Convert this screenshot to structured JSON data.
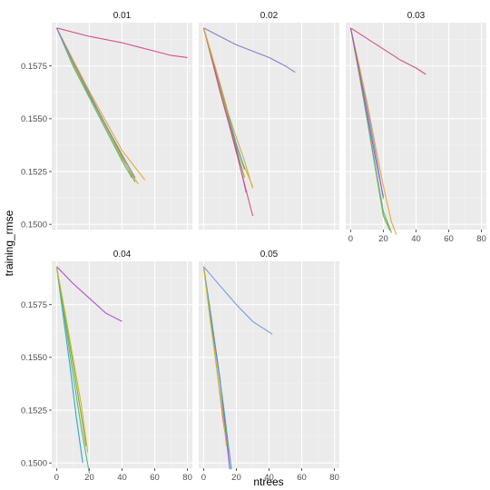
{
  "chart_data": {
    "type": "line",
    "layout": "facet-grid",
    "xlabel": "ntrees",
    "ylabel": "training_rmse",
    "xlim": [
      -3,
      83
    ],
    "ylim": [
      0.14975,
      0.15955
    ],
    "x_ticks": [
      0,
      20,
      40,
      60,
      80
    ],
    "x_tick_labels": [
      "0",
      "20",
      "40",
      "60",
      "80"
    ],
    "y_ticks": [
      0.15,
      0.1525,
      0.155,
      0.1575
    ],
    "y_tick_labels": [
      "0.1500",
      "0.1525",
      "0.1550",
      "0.1575"
    ],
    "grid": true,
    "legend": "none",
    "colors": {
      "panel_bg": "#ebebeb",
      "grid_major": "#ffffff",
      "series_palette": [
        "#d64f8a",
        "#8e7cc3",
        "#cdb820",
        "#8aa82c",
        "#4fbc8f",
        "#36a6c5",
        "#6e9ee0",
        "#e0a93a",
        "#b04fd0"
      ]
    },
    "panels": [
      {
        "label": "0.01",
        "series": [
          {
            "color": "#d64f8a",
            "x": [
              0,
              20,
              40,
              50,
              60,
              70,
              80
            ],
            "y": [
              0.1593,
              0.1589,
              0.1586,
              0.1584,
              0.1582,
              0.158,
              0.1579
            ]
          },
          {
            "color": "#8aa82c",
            "x": [
              0,
              10,
              20,
              30,
              40,
              48
            ],
            "y": [
              0.1593,
              0.1576,
              0.1561,
              0.1547,
              0.1532,
              0.152
            ]
          },
          {
            "color": "#cdb820",
            "x": [
              0,
              10,
              20,
              30,
              40,
              50
            ],
            "y": [
              0.1593,
              0.1576,
              0.156,
              0.1546,
              0.1531,
              0.1519
            ]
          },
          {
            "color": "#4fbc8f",
            "x": [
              0,
              10,
              20,
              30,
              40,
              46
            ],
            "y": [
              0.1593,
              0.1575,
              0.156,
              0.1545,
              0.153,
              0.1522
            ]
          },
          {
            "color": "#e0a93a",
            "x": [
              0,
              10,
              20,
              30,
              40,
              54
            ],
            "y": [
              0.1593,
              0.1578,
              0.1563,
              0.1549,
              0.1535,
              0.1521
            ]
          },
          {
            "color": "#8e7cc3",
            "x": [
              0,
              10,
              20,
              30,
              40,
              48
            ],
            "y": [
              0.1593,
              0.1577,
              0.1562,
              0.1547,
              0.1533,
              0.1522
            ]
          }
        ]
      },
      {
        "label": "0.02",
        "series": [
          {
            "color": "#8e7cc3",
            "x": [
              0,
              10,
              20,
              30,
              40,
              50,
              56
            ],
            "y": [
              0.1593,
              0.1589,
              0.1585,
              0.1582,
              0.1579,
              0.1575,
              0.1572
            ]
          },
          {
            "color": "#cdb820",
            "x": [
              0,
              5,
              10,
              15,
              20,
              25,
              30
            ],
            "y": [
              0.1593,
              0.158,
              0.1565,
              0.155,
              0.1537,
              0.1527,
              0.1518
            ]
          },
          {
            "color": "#8aa82c",
            "x": [
              0,
              5,
              10,
              15,
              20,
              25
            ],
            "y": [
              0.1593,
              0.1578,
              0.1563,
              0.155,
              0.1536,
              0.1522
            ]
          },
          {
            "color": "#36a6c5",
            "x": [
              0,
              5,
              10,
              15,
              20,
              25
            ],
            "y": [
              0.1593,
              0.158,
              0.1566,
              0.1552,
              0.1538,
              0.1526
            ]
          },
          {
            "color": "#b04fd0",
            "x": [
              0,
              5,
              10,
              15,
              20,
              26
            ],
            "y": [
              0.1593,
              0.1579,
              0.1563,
              0.1549,
              0.1535,
              0.1515
            ]
          },
          {
            "color": "#d64f8a",
            "x": [
              0,
              5,
              10,
              15,
              20,
              25,
              30
            ],
            "y": [
              0.1593,
              0.1579,
              0.1563,
              0.1549,
              0.1534,
              0.1519,
              0.1504
            ]
          },
          {
            "color": "#e0a93a",
            "x": [
              0,
              5,
              10,
              15,
              20,
              25,
              30
            ],
            "y": [
              0.1593,
              0.158,
              0.1567,
              0.1553,
              0.1541,
              0.153,
              0.1517
            ]
          }
        ]
      },
      {
        "label": "0.03",
        "series": [
          {
            "color": "#d64f8a",
            "x": [
              0,
              10,
              20,
              30,
              40,
              46
            ],
            "y": [
              0.1593,
              0.1588,
              0.1583,
              0.1578,
              0.1574,
              0.1571
            ]
          },
          {
            "color": "#6e9ee0",
            "x": [
              0,
              5,
              10,
              15,
              20
            ],
            "y": [
              0.1593,
              0.1575,
              0.1556,
              0.1535,
              0.1512
            ]
          },
          {
            "color": "#8aa82c",
            "x": [
              0,
              5,
              10,
              15,
              20,
              24
            ],
            "y": [
              0.1593,
              0.1572,
              0.155,
              0.1527,
              0.1504,
              0.1497
            ]
          },
          {
            "color": "#4fbc8f",
            "x": [
              0,
              5,
              10,
              15,
              20,
              25
            ],
            "y": [
              0.1593,
              0.1573,
              0.1551,
              0.1528,
              0.1506,
              0.1496
            ]
          },
          {
            "color": "#e0a93a",
            "x": [
              0,
              5,
              10,
              15,
              20,
              25,
              28
            ],
            "y": [
              0.1593,
              0.1576,
              0.1558,
              0.1538,
              0.1518,
              0.1501,
              0.1495
            ]
          },
          {
            "color": "#b04fd0",
            "x": [
              0,
              5,
              10,
              15,
              20
            ],
            "y": [
              0.1593,
              0.1574,
              0.1553,
              0.1532,
              0.1513
            ]
          }
        ]
      },
      {
        "label": "0.04",
        "series": [
          {
            "color": "#b04fd0",
            "x": [
              0,
              10,
              20,
              30,
              40
            ],
            "y": [
              0.1593,
              0.1585,
              0.1578,
              0.1571,
              0.1567
            ]
          },
          {
            "color": "#36a6c5",
            "x": [
              0,
              4,
              8,
              12,
              16
            ],
            "y": [
              0.1593,
              0.157,
              0.1547,
              0.1522,
              0.15
            ]
          },
          {
            "color": "#4fbc8f",
            "x": [
              0,
              5,
              10,
              15,
              20
            ],
            "y": [
              0.1593,
              0.1568,
              0.1542,
              0.1517,
              0.1495
            ]
          },
          {
            "color": "#8aa82c",
            "x": [
              0,
              5,
              10,
              15,
              18
            ],
            "y": [
              0.1593,
              0.157,
              0.1547,
              0.1523,
              0.1508
            ]
          },
          {
            "color": "#cdb820",
            "x": [
              0,
              5,
              10,
              15,
              19
            ],
            "y": [
              0.1593,
              0.1572,
              0.155,
              0.1528,
              0.1505
            ]
          }
        ]
      },
      {
        "label": "0.05",
        "series": [
          {
            "color": "#6e9ee0",
            "x": [
              0,
              10,
              20,
              30,
              42
            ],
            "y": [
              0.1593,
              0.1584,
              0.1575,
              0.1567,
              0.1561
            ]
          },
          {
            "color": "#d64f8a",
            "x": [
              0,
              4,
              8,
              12,
              15
            ],
            "y": [
              0.1593,
              0.157,
              0.1545,
              0.152,
              0.1505
            ]
          },
          {
            "color": "#b04fd0",
            "x": [
              0,
              5,
              10,
              16
            ],
            "y": [
              0.1593,
              0.1567,
              0.154,
              0.1497
            ]
          },
          {
            "color": "#36a6c5",
            "x": [
              0,
              4,
              8,
              12,
              17
            ],
            "y": [
              0.1593,
              0.1572,
              0.155,
              0.1528,
              0.1497
            ]
          },
          {
            "color": "#cdb820",
            "x": [
              0,
              4,
              8,
              12,
              14
            ],
            "y": [
              0.1593,
              0.1568,
              0.1545,
              0.1522,
              0.1508
            ]
          }
        ]
      }
    ]
  }
}
